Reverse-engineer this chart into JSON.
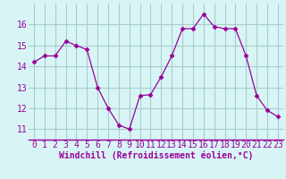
{
  "x": [
    0,
    1,
    2,
    3,
    4,
    5,
    6,
    7,
    8,
    9,
    10,
    11,
    12,
    13,
    14,
    15,
    16,
    17,
    18,
    19,
    20,
    21,
    22,
    23
  ],
  "y": [
    14.2,
    14.5,
    14.5,
    15.2,
    15.0,
    14.8,
    13.0,
    12.0,
    11.2,
    11.0,
    12.6,
    12.65,
    13.5,
    14.5,
    15.8,
    15.8,
    16.5,
    15.9,
    15.8,
    15.8,
    14.5,
    12.6,
    11.9,
    11.6
  ],
  "line_color": "#990099",
  "marker": "D",
  "marker_size": 2.5,
  "bg_color": "#d8f5f5",
  "grid_color": "#aacccc",
  "xlabel": "Windchill (Refroidissement éolien,°C)",
  "xlabel_fontsize": 7,
  "tick_fontsize": 7,
  "ylim": [
    10.5,
    17.0
  ],
  "xlim": [
    -0.5,
    23.5
  ],
  "yticks": [
    11,
    12,
    13,
    14,
    15,
    16
  ],
  "xticks": [
    0,
    1,
    2,
    3,
    4,
    5,
    6,
    7,
    8,
    9,
    10,
    11,
    12,
    13,
    14,
    15,
    16,
    17,
    18,
    19,
    20,
    21,
    22,
    23
  ]
}
